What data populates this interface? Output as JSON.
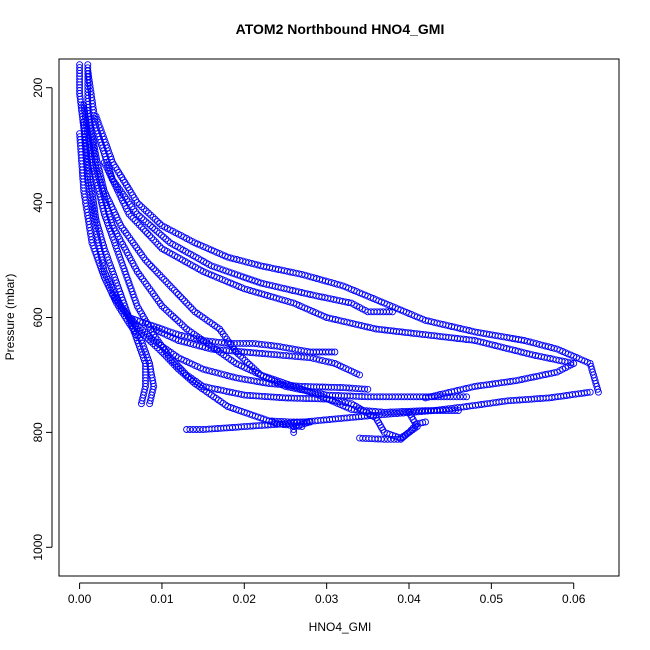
{
  "chart_data": {
    "type": "scatter",
    "title": "ATOM2 Northbound HNO4_GMI",
    "xlabel": "HNO4_GMI",
    "ylabel": "Pressure (mbar)",
    "xlim": [
      -0.0025,
      0.0655
    ],
    "ylim": [
      1050,
      150
    ],
    "y_reversed": true,
    "grid": false,
    "legend": "none",
    "marker": "open-circle",
    "color": "#0000ff",
    "x_ticks": [
      0.0,
      0.01,
      0.02,
      0.03,
      0.04,
      0.05,
      0.06
    ],
    "x_tick_labels": [
      "0.00",
      "0.01",
      "0.02",
      "0.03",
      "0.04",
      "0.05",
      "0.06"
    ],
    "y_ticks": [
      200,
      400,
      600,
      800,
      1000
    ],
    "y_tick_labels": [
      "200",
      "400",
      "600",
      "800",
      "1000"
    ],
    "series": [
      {
        "values": [
          [
            0.0,
            160
          ],
          [
            0.0,
            210
          ],
          [
            0.0005,
            270
          ],
          [
            0.001,
            330
          ],
          [
            0.0015,
            380
          ],
          [
            0.002,
            430
          ],
          [
            0.003,
            480
          ],
          [
            0.004,
            520
          ],
          [
            0.005,
            560
          ],
          [
            0.006,
            600
          ],
          [
            0.007,
            640
          ],
          [
            0.008,
            680
          ],
          [
            0.008,
            720
          ],
          [
            0.0075,
            750
          ]
        ]
      },
      {
        "values": [
          [
            0.001,
            160
          ],
          [
            0.001,
            240
          ],
          [
            0.002,
            320
          ],
          [
            0.003,
            380
          ],
          [
            0.005,
            440
          ],
          [
            0.008,
            500
          ],
          [
            0.011,
            545
          ],
          [
            0.014,
            590
          ],
          [
            0.017,
            620
          ],
          [
            0.019,
            660
          ],
          [
            0.022,
            700
          ],
          [
            0.025,
            720
          ],
          [
            0.03,
            735
          ],
          [
            0.035,
            738
          ],
          [
            0.045,
            738
          ],
          [
            0.047,
            738
          ]
        ]
      },
      {
        "values": [
          [
            0.001,
            170
          ],
          [
            0.002,
            270
          ],
          [
            0.004,
            360
          ],
          [
            0.007,
            420
          ],
          [
            0.011,
            470
          ],
          [
            0.016,
            510
          ],
          [
            0.022,
            540
          ],
          [
            0.028,
            560
          ],
          [
            0.033,
            575
          ],
          [
            0.035,
            590
          ],
          [
            0.038,
            590
          ]
        ]
      },
      {
        "values": [
          [
            0.002,
            250
          ],
          [
            0.004,
            330
          ],
          [
            0.007,
            400
          ],
          [
            0.01,
            440
          ],
          [
            0.014,
            470
          ],
          [
            0.018,
            495
          ],
          [
            0.022,
            510
          ],
          [
            0.027,
            525
          ],
          [
            0.032,
            545
          ],
          [
            0.037,
            575
          ],
          [
            0.042,
            605
          ],
          [
            0.048,
            625
          ],
          [
            0.054,
            640
          ],
          [
            0.058,
            655
          ],
          [
            0.062,
            680
          ],
          [
            0.063,
            730
          ]
        ]
      },
      {
        "values": [
          [
            0.062,
            730
          ],
          [
            0.057,
            740
          ],
          [
            0.052,
            745
          ],
          [
            0.047,
            755
          ],
          [
            0.043,
            762
          ],
          [
            0.036,
            770
          ],
          [
            0.03,
            778
          ],
          [
            0.025,
            785
          ],
          [
            0.02,
            790
          ],
          [
            0.015,
            795
          ],
          [
            0.013,
            795
          ]
        ]
      },
      {
        "values": [
          [
            0.003,
            330
          ],
          [
            0.006,
            420
          ],
          [
            0.01,
            480
          ],
          [
            0.015,
            520
          ],
          [
            0.02,
            550
          ],
          [
            0.026,
            575
          ],
          [
            0.03,
            600
          ],
          [
            0.036,
            620
          ],
          [
            0.042,
            630
          ],
          [
            0.048,
            640
          ],
          [
            0.055,
            665
          ],
          [
            0.06,
            680
          ],
          [
            0.058,
            695
          ],
          [
            0.053,
            710
          ],
          [
            0.048,
            720
          ],
          [
            0.042,
            740
          ]
        ]
      },
      {
        "values": [
          [
            0.0005,
            230
          ],
          [
            0.0015,
            330
          ],
          [
            0.003,
            420
          ],
          [
            0.005,
            500
          ],
          [
            0.007,
            580
          ],
          [
            0.009,
            630
          ],
          [
            0.011,
            670
          ],
          [
            0.013,
            700
          ],
          [
            0.015,
            720
          ],
          [
            0.02,
            735
          ],
          [
            0.025,
            740
          ],
          [
            0.03,
            742
          ],
          [
            0.033,
            750
          ],
          [
            0.036,
            775
          ],
          [
            0.037,
            800
          ],
          [
            0.039,
            810
          ],
          [
            0.041,
            790
          ],
          [
            0.04,
            765
          ]
        ]
      },
      {
        "values": [
          [
            0.001,
            240
          ],
          [
            0.002,
            340
          ],
          [
            0.004,
            440
          ],
          [
            0.007,
            520
          ],
          [
            0.01,
            580
          ],
          [
            0.013,
            620
          ],
          [
            0.016,
            650
          ],
          [
            0.019,
            680
          ],
          [
            0.022,
            700
          ],
          [
            0.026,
            720
          ],
          [
            0.029,
            735
          ],
          [
            0.033,
            760
          ],
          [
            0.037,
            765
          ],
          [
            0.042,
            762
          ],
          [
            0.046,
            762
          ]
        ]
      },
      {
        "values": [
          [
            0.0005,
            260
          ],
          [
            0.001,
            360
          ],
          [
            0.002,
            450
          ],
          [
            0.003,
            520
          ],
          [
            0.005,
            580
          ],
          [
            0.007,
            620
          ],
          [
            0.01,
            660
          ],
          [
            0.012,
            690
          ],
          [
            0.014,
            715
          ],
          [
            0.016,
            735
          ],
          [
            0.018,
            755
          ],
          [
            0.021,
            770
          ],
          [
            0.024,
            785
          ],
          [
            0.027,
            790
          ]
        ]
      },
      {
        "values": [
          [
            0.009,
            620
          ],
          [
            0.012,
            640
          ],
          [
            0.016,
            655
          ],
          [
            0.02,
            660
          ],
          [
            0.024,
            665
          ],
          [
            0.028,
            670
          ],
          [
            0.031,
            680
          ],
          [
            0.034,
            700
          ]
        ]
      },
      {
        "values": [
          [
            0.004,
            560
          ],
          [
            0.006,
            600
          ],
          [
            0.009,
            640
          ],
          [
            0.012,
            670
          ],
          [
            0.015,
            690
          ],
          [
            0.019,
            705
          ],
          [
            0.023,
            715
          ],
          [
            0.027,
            720
          ],
          [
            0.032,
            722
          ],
          [
            0.035,
            725
          ]
        ]
      },
      {
        "values": [
          [
            0.0,
            280
          ],
          [
            0.0005,
            380
          ],
          [
            0.0015,
            470
          ],
          [
            0.003,
            530
          ],
          [
            0.0045,
            575
          ],
          [
            0.006,
            610
          ],
          [
            0.0075,
            640
          ],
          [
            0.0085,
            680
          ],
          [
            0.009,
            720
          ],
          [
            0.0085,
            750
          ]
        ]
      },
      {
        "values": [
          [
            0.006,
            600
          ],
          [
            0.009,
            615
          ],
          [
            0.012,
            630
          ],
          [
            0.015,
            640
          ],
          [
            0.018,
            645
          ],
          [
            0.021,
            645
          ],
          [
            0.024,
            650
          ],
          [
            0.028,
            660
          ],
          [
            0.031,
            660
          ]
        ]
      },
      {
        "values": [
          [
            0.023,
            780
          ],
          [
            0.026,
            782
          ],
          [
            0.028,
            782
          ],
          [
            0.026,
            790
          ],
          [
            0.026,
            800
          ]
        ]
      },
      {
        "values": [
          [
            0.034,
            810
          ],
          [
            0.037,
            812
          ],
          [
            0.039,
            812
          ],
          [
            0.04,
            800
          ],
          [
            0.041,
            785
          ],
          [
            0.042,
            782
          ]
        ]
      }
    ]
  }
}
